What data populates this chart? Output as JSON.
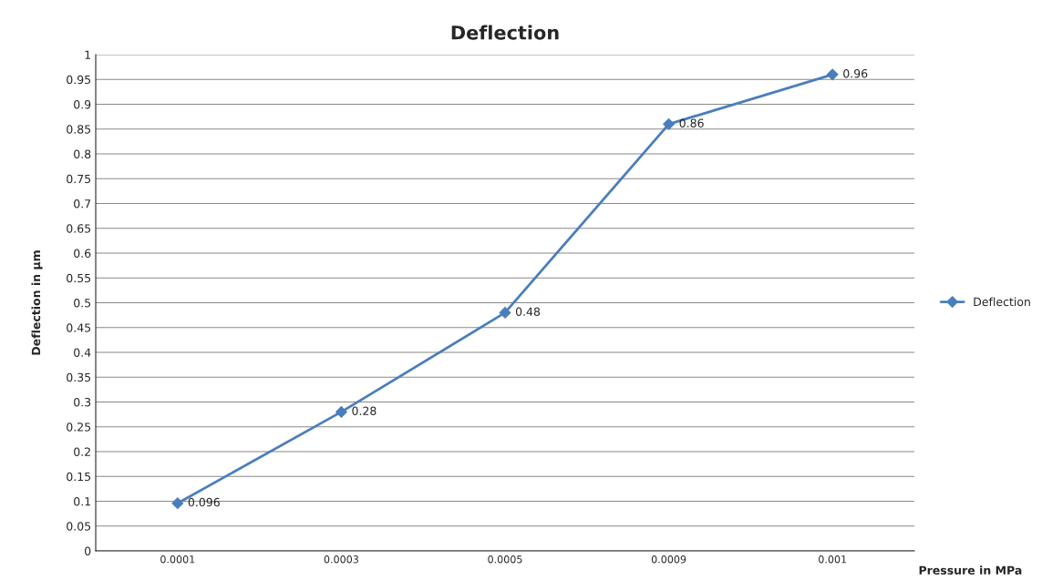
{
  "chart_data": {
    "type": "line",
    "title": "Deflection",
    "xlabel": "Pressure in MPa",
    "ylabel": "Deflection in µm",
    "categories": [
      "0.0001",
      "0.0003",
      "0.0005",
      "0.0009",
      "0.001"
    ],
    "series": [
      {
        "name": "Deflection",
        "color": "#4a7ebb",
        "values": [
          0.096,
          0.28,
          0.48,
          0.86,
          0.96
        ]
      }
    ],
    "ylim": [
      0,
      1
    ],
    "yticks": [
      0,
      0.05,
      0.1,
      0.15,
      0.2,
      0.25,
      0.3,
      0.35,
      0.4,
      0.45,
      0.5,
      0.55,
      0.6,
      0.65,
      0.7,
      0.75,
      0.8,
      0.85,
      0.9,
      0.95,
      1
    ],
    "grid": "y",
    "legend": "right",
    "marker": "diamond",
    "line_style": "solid",
    "data_labels": true
  }
}
